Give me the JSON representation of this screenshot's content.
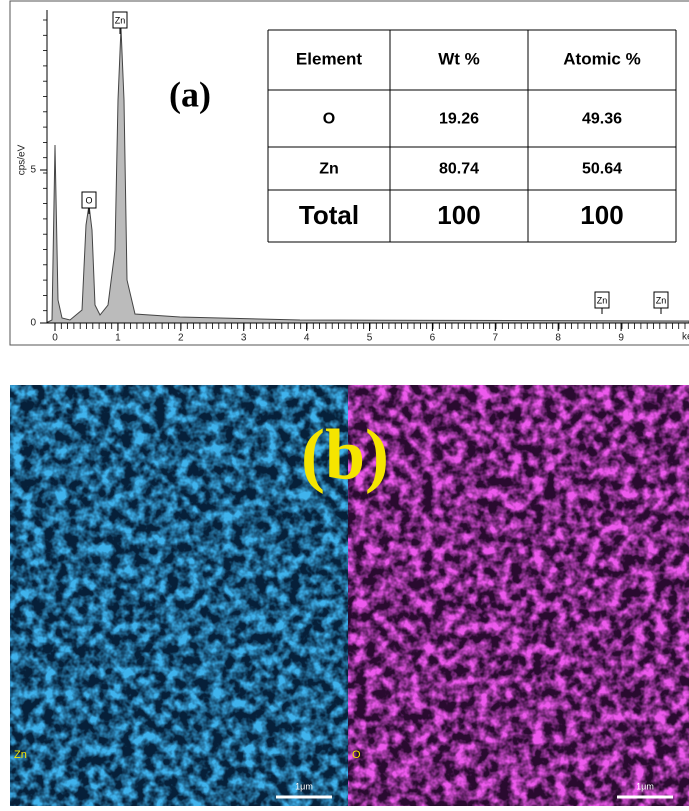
{
  "panel_a": {
    "label": "(a)",
    "y_axis_label": "cps/eV",
    "x_unit": "ke",
    "x_ticks": [
      0,
      1,
      2,
      3,
      4,
      5,
      6,
      7,
      8,
      9
    ],
    "y_ticks": [
      0,
      5
    ],
    "peak_labels": [
      "Zn",
      "O",
      "Zn",
      "Zn"
    ],
    "table": {
      "headers": [
        "Element",
        "Wt %",
        "Atomic %"
      ],
      "rows": [
        [
          "O",
          19.26,
          49.36
        ],
        [
          "Zn",
          80.74,
          50.64
        ],
        [
          "Total",
          100,
          100
        ]
      ]
    }
  },
  "panel_b": {
    "label": "(b)",
    "maps": [
      {
        "element": "Zn",
        "scale": "1μm"
      },
      {
        "element": "O",
        "scale": "1μm"
      }
    ]
  }
}
